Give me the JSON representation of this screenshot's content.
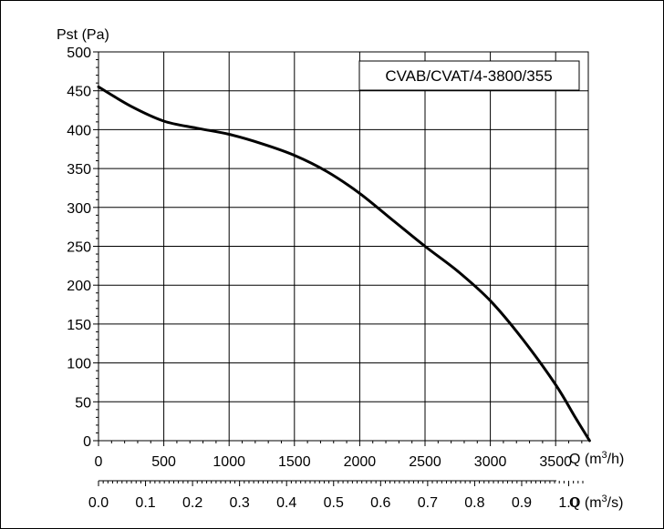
{
  "chart_data": {
    "type": "line",
    "title": "",
    "ylabel": "Pst (Pa)",
    "xlabel_primary": {
      "prefix": "Q (m",
      "sup": "3",
      "suffix": "/h)"
    },
    "xlabel_secondary": {
      "prefix": "Q (m",
      "sup": "3",
      "suffix": "/s)"
    },
    "legend": "CVAB/CVAT/4-3800/355",
    "legend_position": "top-right",
    "grid": true,
    "xlim": [
      0,
      3750
    ],
    "ylim": [
      0,
      500
    ],
    "x_ticks": [
      0,
      500,
      1000,
      1500,
      2000,
      2500,
      3000,
      3500
    ],
    "x_tick_labels": [
      "0",
      "500",
      "1000",
      "1500",
      "2000",
      "2500",
      "3000",
      "3500"
    ],
    "y_ticks": [
      0,
      50,
      100,
      150,
      200,
      250,
      300,
      350,
      400,
      450,
      500
    ],
    "y_tick_labels": [
      "0",
      "50",
      "100",
      "150",
      "200",
      "250",
      "300",
      "350",
      "400",
      "450",
      "500"
    ],
    "secondary_ticks_m3s": [
      0.0,
      0.1,
      0.2,
      0.3,
      0.4,
      0.5,
      0.6,
      0.7,
      0.8,
      0.9,
      1.0
    ],
    "secondary_tick_labels": [
      "0.0",
      "0.1",
      "0.2",
      "0.3",
      "0.4",
      "0.5",
      "0.6",
      "0.7",
      "0.8",
      "0.9",
      "1.0"
    ],
    "series": [
      {
        "name": "CVAB/CVAT/4-3800/355",
        "x": [
          0,
          250,
          500,
          750,
          1000,
          1250,
          1500,
          1750,
          2000,
          2250,
          2500,
          2750,
          3000,
          3250,
          3500,
          3650,
          3760
        ],
        "y": [
          455,
          430,
          411,
          402,
          394,
          382,
          367,
          346,
          318,
          284,
          250,
          218,
          180,
          130,
          72,
          30,
          0
        ]
      }
    ]
  }
}
